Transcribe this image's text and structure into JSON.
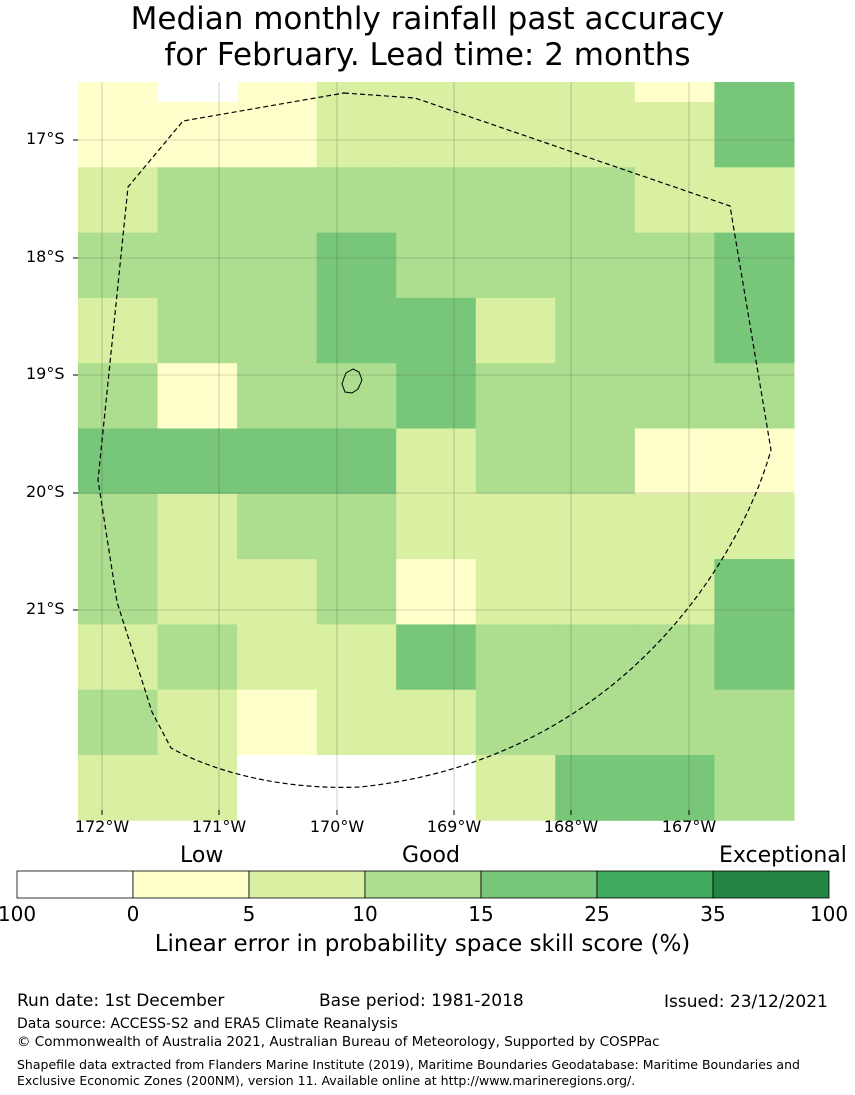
{
  "title": {
    "line1": "Median monthly rainfall past accuracy",
    "line2": "for February. Lead time: 2 months"
  },
  "map": {
    "lat_labels": [
      "17°S",
      "18°S",
      "19°S",
      "20°S",
      "21°S"
    ],
    "lon_labels": [
      "172°W",
      "171°W",
      "170°W",
      "169°W",
      "168°W",
      "167°W"
    ],
    "grid_colors_by_class": [
      "#ffffff",
      "#ffffcc",
      "#d9f0a3",
      "#addd8e",
      "#78c679",
      "#41ab5d",
      "#238443"
    ],
    "grid": [
      [
        1,
        0,
        1,
        2,
        2,
        2,
        2,
        1,
        4
      ],
      [
        1,
        1,
        1,
        2,
        2,
        2,
        2,
        2,
        4
      ],
      [
        2,
        3,
        3,
        3,
        3,
        3,
        3,
        2,
        2
      ],
      [
        3,
        3,
        3,
        4,
        3,
        3,
        3,
        3,
        4
      ],
      [
        2,
        3,
        3,
        4,
        4,
        2,
        3,
        3,
        4
      ],
      [
        3,
        1,
        3,
        3,
        4,
        3,
        3,
        3,
        3
      ],
      [
        4,
        4,
        4,
        4,
        2,
        3,
        3,
        1,
        1
      ],
      [
        3,
        2,
        3,
        3,
        2,
        2,
        2,
        2,
        2
      ],
      [
        3,
        2,
        2,
        3,
        1,
        2,
        2,
        2,
        4
      ],
      [
        2,
        3,
        2,
        2,
        4,
        3,
        3,
        3,
        4
      ],
      [
        3,
        2,
        1,
        2,
        2,
        3,
        3,
        3,
        3
      ],
      [
        2,
        2,
        0,
        0,
        0,
        2,
        4,
        4,
        3
      ]
    ]
  },
  "legend": {
    "categories": [
      {
        "label": "Low"
      },
      {
        "label": "Good"
      },
      {
        "label": "Exceptional"
      }
    ],
    "colors": [
      "#ffffff",
      "#ffffcc",
      "#d9f0a3",
      "#addd8e",
      "#78c679",
      "#41ab5d",
      "#238443"
    ],
    "ticks": [
      "100",
      "0",
      "5",
      "10",
      "15",
      "25",
      "35",
      "100"
    ],
    "title": "Linear error in probability space skill score (%)"
  },
  "footer": {
    "run_date": "Run date: 1st December",
    "base_period": "Base period: 1981-2018",
    "issued": "Issued: 23/12/2021",
    "data_source": "Data source: ACCESS-S2 and ERA5 Climate Reanalysis",
    "copyright": "© Commonwealth of Australia 2021, Australian Bureau of Meteorology, Supported by COSPPac",
    "shapefile": "Shapefile data extracted from Flanders Marine Institute (2019), Maritime Boundaries Geodatabase: Maritime Boundaries and Exclusive Economic Zones (200NM), version 11. Available online at http://www.marineregions.org/."
  }
}
